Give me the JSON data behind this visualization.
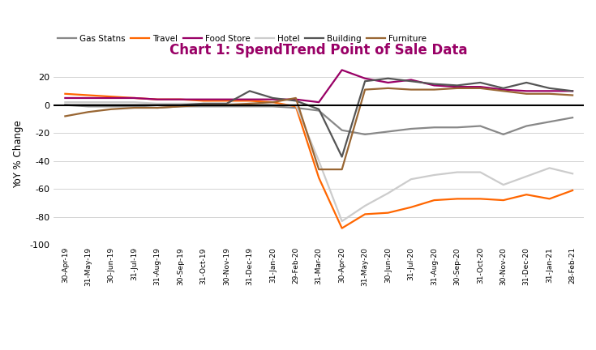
{
  "title": "Chart 1: SpendTrend Point of Sale Data",
  "title_color": "#990066",
  "ylabel": "YoY % Change",
  "x_labels": [
    "30-Apr-19",
    "31-May-19",
    "30-Jun-19",
    "31-Jul-19",
    "31-Aug-19",
    "30-Sep-19",
    "31-Oct-19",
    "30-Nov-19",
    "31-Dec-19",
    "31-Jan-20",
    "29-Feb-20",
    "31-Mar-20",
    "30-Apr-20",
    "31-May-20",
    "30-Jun-20",
    "31-Jul-20",
    "31-Aug-20",
    "30-Sep-20",
    "31-Oct-20",
    "30-Nov-20",
    "31-Dec-20",
    "31-Jan-21",
    "28-Feb-21"
  ],
  "series": {
    "Gas Statns": {
      "color": "#888888",
      "data": [
        0,
        -1,
        -1,
        -1,
        -2,
        -1,
        -1,
        -1,
        -1,
        -1,
        -2,
        -4,
        -18,
        -21,
        -19,
        -17,
        -16,
        -16,
        -15,
        -21,
        -15,
        -12,
        -9
      ]
    },
    "Travel": {
      "color": "#FF6600",
      "data": [
        8,
        7,
        6,
        5,
        4,
        4,
        3,
        3,
        3,
        2,
        -1,
        -52,
        -88,
        -78,
        -77,
        -73,
        -68,
        -67,
        -67,
        -68,
        -64,
        -67,
        -61
      ]
    },
    "Food Store": {
      "color": "#990066",
      "data": [
        5,
        5,
        5,
        5,
        4,
        4,
        4,
        4,
        4,
        4,
        4,
        2,
        25,
        19,
        16,
        18,
        14,
        13,
        13,
        11,
        10,
        10,
        10
      ]
    },
    "Hotel": {
      "color": "#cccccc",
      "data": [
        2,
        2,
        2,
        2,
        1,
        1,
        1,
        1,
        1,
        0,
        0,
        -40,
        -83,
        -72,
        -63,
        -53,
        -50,
        -48,
        -48,
        -57,
        -51,
        -45,
        -49
      ]
    },
    "Building": {
      "color": "#555555",
      "data": [
        0,
        0,
        0,
        0,
        0,
        0,
        1,
        1,
        10,
        5,
        3,
        -3,
        -37,
        17,
        19,
        17,
        15,
        14,
        16,
        12,
        16,
        12,
        10
      ]
    },
    "Furniture": {
      "color": "#996633",
      "data": [
        -8,
        -5,
        -3,
        -2,
        -2,
        -1,
        0,
        0,
        1,
        2,
        5,
        -46,
        -46,
        11,
        12,
        11,
        11,
        12,
        12,
        10,
        8,
        8,
        7
      ]
    }
  },
  "ylim": [
    -100,
    30
  ],
  "yticks": [
    -100,
    -80,
    -60,
    -40,
    -20,
    0,
    20
  ],
  "bg_color": "#ffffff",
  "plot_bg_color": "#ffffff"
}
